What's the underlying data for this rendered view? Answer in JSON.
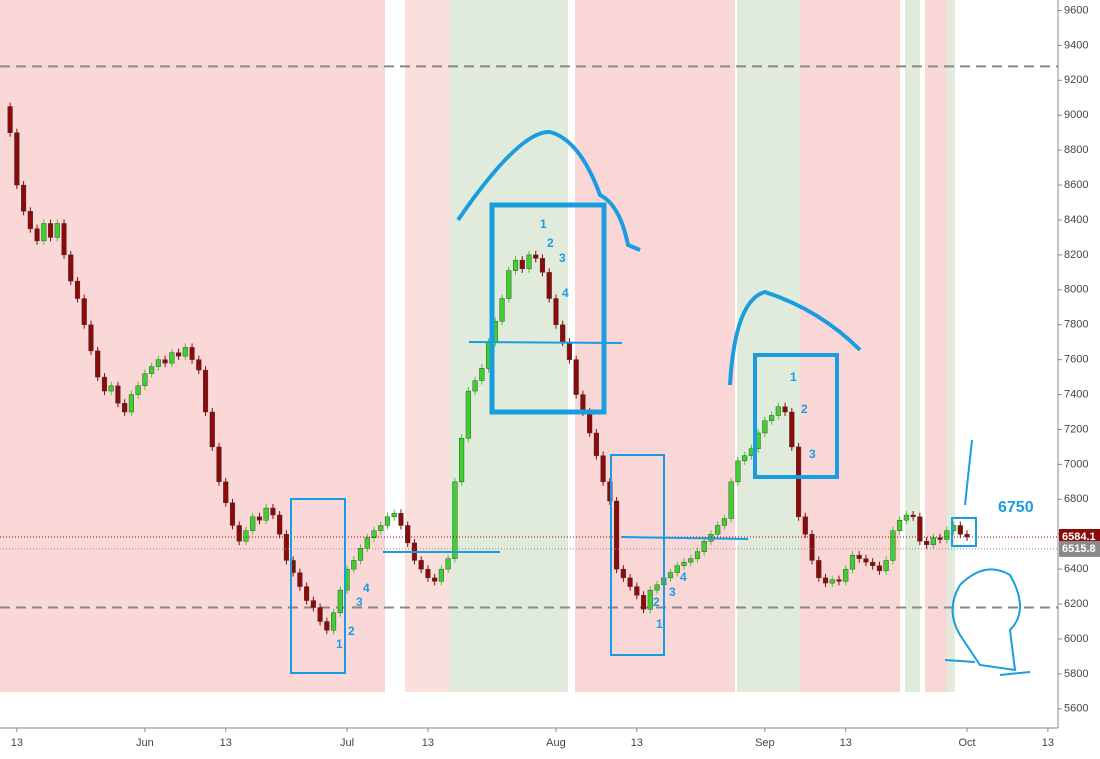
{
  "chart_data": {
    "type": "candlestick",
    "x": [
      -2,
      -1,
      0,
      1,
      2,
      3,
      4,
      5,
      6,
      7,
      8,
      9,
      10,
      11,
      12,
      13,
      14,
      15,
      16,
      17,
      18,
      19,
      20,
      21,
      22,
      23,
      24,
      25,
      26,
      27,
      28,
      29,
      30,
      31,
      32,
      33,
      34,
      35,
      36,
      37,
      38,
      39,
      40,
      41,
      42,
      43,
      44,
      45,
      46,
      47,
      48,
      49,
      50,
      51,
      52,
      53,
      54,
      55,
      56,
      57,
      58,
      59,
      60,
      61,
      62,
      63,
      64,
      65,
      66,
      67,
      68,
      69,
      70,
      71,
      72,
      73,
      74,
      75,
      76,
      77,
      78,
      79,
      80,
      81,
      82,
      83,
      84,
      85,
      86,
      87,
      88,
      89,
      90,
      91,
      92,
      93,
      94,
      95,
      96,
      97,
      98,
      99,
      100,
      101,
      102,
      103,
      104,
      105,
      106,
      107,
      108,
      109,
      110,
      111,
      112,
      113,
      114,
      115,
      116,
      117,
      118,
      119,
      120,
      121,
      122,
      123,
      124,
      125,
      126,
      127,
      128,
      129,
      130,
      131,
      132,
      133,
      134,
      135,
      136,
      137,
      138,
      139,
      140,
      141
    ],
    "series": [
      {
        "up_color": "#3fcf2f",
        "down_color": "#8b0a0a",
        "values": [
          9050,
          8900,
          8600,
          8450,
          8350,
          8280,
          8380,
          8300,
          8380,
          8200,
          8050,
          7950,
          7800,
          7650,
          7500,
          7420,
          7450,
          7350,
          7300,
          7400,
          7450,
          7520,
          7560,
          7600,
          7580,
          7640,
          7620,
          7670,
          7600,
          7540,
          7300,
          7100,
          6900,
          6780,
          6650,
          6560,
          6620,
          6700,
          6680,
          6750,
          6710,
          6600,
          6450,
          6380,
          6300,
          6220,
          6180,
          6100,
          6050,
          6150,
          6280,
          6400,
          6450,
          6520,
          6580,
          6620,
          6650,
          6700,
          6720,
          6650,
          6550,
          6450,
          6400,
          6350,
          6330,
          6400,
          6460,
          6900,
          7150,
          7420,
          7480,
          7550,
          7700,
          7820,
          7950,
          8110,
          8170,
          8120,
          8200,
          8180,
          8100,
          7950,
          7800,
          7700,
          7600,
          7400,
          7300,
          7180,
          7050,
          6900,
          6790,
          6400,
          6350,
          6300,
          6250,
          6170,
          6280,
          6310,
          6350,
          6380,
          6420,
          6440,
          6460,
          6500,
          6560,
          6600,
          6650,
          6690,
          6900,
          7020,
          7050,
          7090,
          7180,
          7250,
          7280,
          7330,
          7300,
          7100,
          6700,
          6600,
          6450,
          6350,
          6320,
          6340,
          6330,
          6400,
          6480,
          6460,
          6440,
          6420,
          6390,
          6450,
          6620,
          6680,
          6710,
          6700,
          6560,
          6540,
          6580,
          6570,
          6620,
          6650,
          6600,
          6584.1
        ]
      }
    ],
    "xlim": [
      -2.5,
      154.5
    ],
    "xticks": [
      {
        "value": 0,
        "label": "13"
      },
      {
        "value": 19,
        "label": "Jun"
      },
      {
        "value": 31,
        "label": "13"
      },
      {
        "value": 49,
        "label": "Jul"
      },
      {
        "value": 61,
        "label": "13"
      },
      {
        "value": 80,
        "label": "Aug"
      },
      {
        "value": 92,
        "label": "13"
      },
      {
        "value": 111,
        "label": "Sep"
      },
      {
        "value": 123,
        "label": "13"
      },
      {
        "value": 141,
        "label": "Oct"
      },
      {
        "value": 153,
        "label": "13"
      }
    ],
    "ylim": [
      5490,
      9660
    ],
    "yticks": [
      5600,
      5800,
      6000,
      6200,
      6400,
      6600,
      6800,
      7000,
      7200,
      7400,
      7600,
      7800,
      8000,
      8200,
      8400,
      8600,
      8800,
      9000,
      9200,
      9400,
      9600
    ],
    "hlines": [
      9280,
      6180
    ],
    "price_labels": [
      {
        "value": 6584.1,
        "color": "#8b0a0a"
      },
      {
        "value": 6515.8,
        "color": "#8a8a8a"
      }
    ],
    "annotations": [
      "6750",
      "1",
      "2",
      "3",
      "4"
    ]
  }
}
